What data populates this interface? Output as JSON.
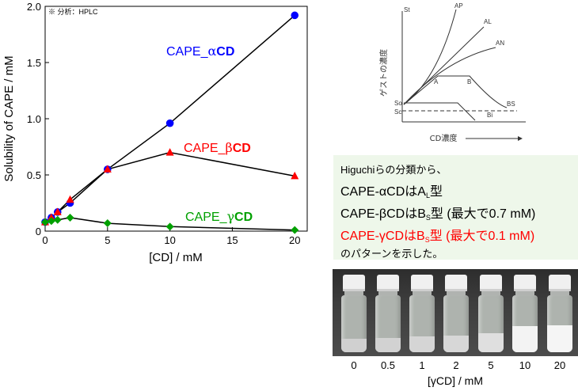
{
  "chart_data": {
    "type": "line",
    "note": "※ 分析：HPLC",
    "xlabel": "[CD] / mM",
    "ylabel": "Solubility of CAPE / mM",
    "xlim": [
      0,
      21
    ],
    "ylim": [
      0,
      2.0
    ],
    "xticks": [
      "0",
      "5",
      "10",
      "15",
      "20"
    ],
    "yticks": [
      "0",
      "0.5",
      "1.0",
      "1.5",
      "2.0"
    ],
    "grid": false,
    "series": [
      {
        "name_prefix": "CAPE_",
        "name_greek": "α",
        "name_suffix": "CD",
        "color": "#0000ff",
        "marker": "circle",
        "x": [
          0,
          0.5,
          1,
          2,
          5,
          10,
          20
        ],
        "y": [
          0.08,
          0.12,
          0.17,
          0.25,
          0.55,
          0.96,
          1.92
        ]
      },
      {
        "name_prefix": "CAPE_",
        "name_greek": "β",
        "name_suffix": "CD",
        "color": "#ff0000",
        "marker": "triangle",
        "x": [
          0,
          0.5,
          1,
          2,
          5,
          10,
          20
        ],
        "y": [
          0.08,
          0.12,
          0.17,
          0.28,
          0.55,
          0.7,
          0.49
        ]
      },
      {
        "name_prefix": "CAPE_",
        "name_greek": "γ",
        "name_suffix": "CD",
        "color": "#00a000",
        "marker": "diamond",
        "x": [
          0,
          0.5,
          1,
          2,
          5,
          10,
          20
        ],
        "y": [
          0.08,
          0.09,
          0.1,
          0.12,
          0.07,
          0.04,
          0.01
        ]
      }
    ]
  },
  "diagram": {
    "labels": {
      "st": "St",
      "ap": "AP",
      "al": "AL",
      "an": "AN",
      "a": "A",
      "b": "B",
      "bs": "BS",
      "bi": "Bi",
      "so": "So",
      "sc": "Sc"
    },
    "ylabel": "ゲストの濃度",
    "xlabel": "CD濃度"
  },
  "summary": {
    "line1": "Higuchiらの分類から、",
    "line2_pre": "CAPE-αCDはA",
    "line2_sub": "L",
    "line2_post": "型",
    "line3_pre": "CAPE-βCDはB",
    "line3_sub": "S",
    "line3_post": "型 (最大で0.7 mM)",
    "line4_pre": "CAPE-γCDはB",
    "line4_sub": "S",
    "line4_post": "型 (最大で0.1 mM)",
    "line5": "のパターンを示した。",
    "highlight_color": "#ff0000"
  },
  "photo": {
    "vial_labels": [
      "0",
      "0.5",
      "1",
      "2",
      "5",
      "10",
      "20"
    ],
    "turbidity": [
      0.15,
      0.2,
      0.25,
      0.3,
      0.45,
      0.85,
      0.9
    ],
    "xlabel": "[γCD] / mM"
  }
}
